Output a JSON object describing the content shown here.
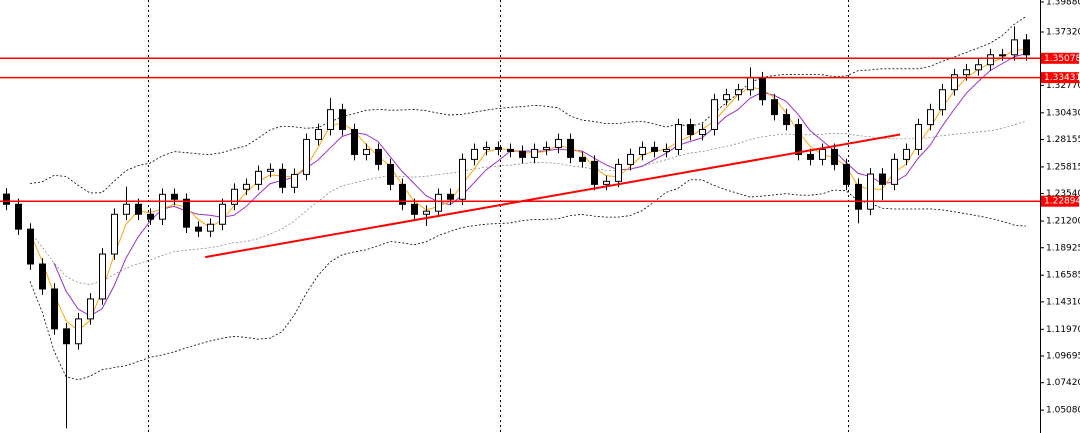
{
  "chart_data": {
    "type": "candlestick",
    "open": [
      1.235,
      1.2263,
      1.2051,
      1.1754,
      1.1541,
      1.1201,
      1.1074,
      1.1286,
      1.1456,
      1.1839,
      1.2178,
      1.2263,
      1.2178,
      1.2136,
      1.2348,
      1.2306,
      1.2068,
      1.2034,
      1.2093,
      1.2263,
      1.2391,
      1.2433,
      1.2544,
      1.2561,
      1.2408,
      1.2518,
      1.2816,
      1.2901,
      1.307,
      1.2901,
      1.2688,
      1.2731,
      1.2603,
      1.2433,
      1.2263,
      1.2178,
      1.2204,
      1.2348,
      1.2306,
      1.2646,
      1.2731,
      1.2748,
      1.2731,
      1.2714,
      1.2663,
      1.2731,
      1.2748,
      1.2816,
      1.2663,
      1.2629,
      1.2433,
      1.2459,
      1.2603,
      1.2688,
      1.2748,
      1.2714,
      1.2731,
      1.2943,
      1.2858,
      1.2901,
      1.3155,
      1.3198,
      1.324,
      1.3342,
      1.3155,
      1.3028,
      1.2943,
      1.2688,
      1.2646,
      1.2731,
      1.2603,
      1.2433,
      1.2221,
      1.2521,
      1.2433,
      1.2646,
      1.2731,
      1.2943,
      1.307,
      1.324,
      1.3368,
      1.341,
      1.3453,
      1.3538,
      1.3538,
      1.3665
    ],
    "high": [
      1.24,
      1.2313,
      1.2101,
      1.1804,
      1.1591,
      1.1251,
      1.1336,
      1.1506,
      1.1889,
      1.2228,
      1.2413,
      1.2313,
      1.2228,
      1.2398,
      1.2398,
      1.2356,
      1.2118,
      1.2143,
      1.2313,
      1.2441,
      1.2483,
      1.2594,
      1.2611,
      1.2611,
      1.2568,
      1.2866,
      1.2951,
      1.317,
      1.312,
      1.2951,
      1.2781,
      1.2781,
      1.2653,
      1.2483,
      1.2313,
      1.2254,
      1.2398,
      1.2398,
      1.2696,
      1.2781,
      1.2798,
      1.2798,
      1.2781,
      1.2764,
      1.2781,
      1.2798,
      1.2866,
      1.2866,
      1.2713,
      1.2679,
      1.2509,
      1.2653,
      1.2738,
      1.2798,
      1.2798,
      1.2781,
      1.2993,
      1.2993,
      1.2951,
      1.3205,
      1.3248,
      1.329,
      1.343,
      1.3392,
      1.3205,
      1.3078,
      1.2993,
      1.2738,
      1.2781,
      1.2781,
      1.2653,
      1.2483,
      1.2571,
      1.2571,
      1.2696,
      1.2781,
      1.2993,
      1.312,
      1.329,
      1.3418,
      1.346,
      1.3503,
      1.3588,
      1.3588,
      1.378,
      1.3715
    ],
    "low": [
      1.2213,
      1.2001,
      1.1704,
      1.1491,
      1.1151,
      1.0352,
      1.1024,
      1.1236,
      1.1406,
      1.1789,
      1.2128,
      1.2128,
      1.2086,
      1.2086,
      1.2256,
      1.2018,
      1.1984,
      1.1984,
      1.2043,
      1.2213,
      1.2341,
      1.2383,
      1.2494,
      1.2358,
      1.2358,
      1.2468,
      1.2766,
      1.2851,
      1.2851,
      1.2638,
      1.2638,
      1.2553,
      1.2383,
      1.2213,
      1.2128,
      1.2078,
      1.2154,
      1.2256,
      1.2256,
      1.2596,
      1.2681,
      1.2681,
      1.2664,
      1.2613,
      1.2613,
      1.2681,
      1.2698,
      1.2613,
      1.2579,
      1.2383,
      1.2383,
      1.2409,
      1.2553,
      1.2638,
      1.2664,
      1.2664,
      1.2681,
      1.2808,
      1.2808,
      1.2851,
      1.3105,
      1.3148,
      1.319,
      1.3105,
      1.2978,
      1.2893,
      1.2638,
      1.2596,
      1.2596,
      1.2553,
      1.2383,
      1.21,
      1.2171,
      1.23,
      1.2383,
      1.2596,
      1.2681,
      1.2893,
      1.302,
      1.319,
      1.3318,
      1.336,
      1.3403,
      1.3488,
      1.3488,
      1.3488
    ],
    "close": [
      1.2263,
      1.2051,
      1.1754,
      1.1541,
      1.1201,
      1.1074,
      1.1286,
      1.1456,
      1.1839,
      1.2178,
      1.2263,
      1.2178,
      1.2136,
      1.2348,
      1.2306,
      1.2068,
      1.2034,
      1.2093,
      1.2263,
      1.2391,
      1.2433,
      1.2544,
      1.2561,
      1.2408,
      1.2518,
      1.2816,
      1.2901,
      1.307,
      1.2901,
      1.2688,
      1.2731,
      1.2603,
      1.2433,
      1.2263,
      1.2178,
      1.2204,
      1.2348,
      1.2306,
      1.2646,
      1.2731,
      1.2748,
      1.2731,
      1.2714,
      1.2663,
      1.2731,
      1.2748,
      1.2816,
      1.2663,
      1.2629,
      1.2433,
      1.2459,
      1.2603,
      1.2688,
      1.2748,
      1.2714,
      1.2731,
      1.2943,
      1.2858,
      1.2901,
      1.3155,
      1.3198,
      1.324,
      1.3342,
      1.3155,
      1.3028,
      1.2943,
      1.2688,
      1.2646,
      1.2731,
      1.2603,
      1.2433,
      1.2221,
      1.2521,
      1.2433,
      1.2646,
      1.2731,
      1.2943,
      1.307,
      1.324,
      1.3368,
      1.341,
      1.3453,
      1.3538,
      1.3538,
      1.3665,
      1.3538
    ],
    "ylim": [
      1.0313,
      1.4005
    ],
    "yticks": [
      {
        "value": 1.3988,
        "label": "1.39880"
      },
      {
        "value": 1.3732,
        "label": "1.37320"
      },
      {
        "value": 1.3277,
        "label": "1.32770"
      },
      {
        "value": 1.3043,
        "label": "1.30430"
      },
      1.28155,
      1.25815,
      {
        "value": 1.2354,
        "label": "1.23540"
      },
      {
        "value": 1.212,
        "label": "1.21200"
      },
      1.18925,
      1.16585,
      {
        "value": 1.1431,
        "label": "1.14310"
      },
      {
        "value": 1.1197,
        "label": "1.11970"
      },
      1.09695,
      {
        "value": 1.0742,
        "label": "1.07420"
      },
      {
        "value": 1.0508,
        "label": "1.05080"
      }
    ],
    "hlines": [
      1.35078,
      1.33431,
      1.22894
    ],
    "hline_color": "#ff0000",
    "trendline": [
      [
        16.6,
        1.1813
      ],
      [
        74.5,
        1.2858
      ]
    ],
    "bull_color": "#ffffff",
    "bear_color": "#000000"
  }
}
